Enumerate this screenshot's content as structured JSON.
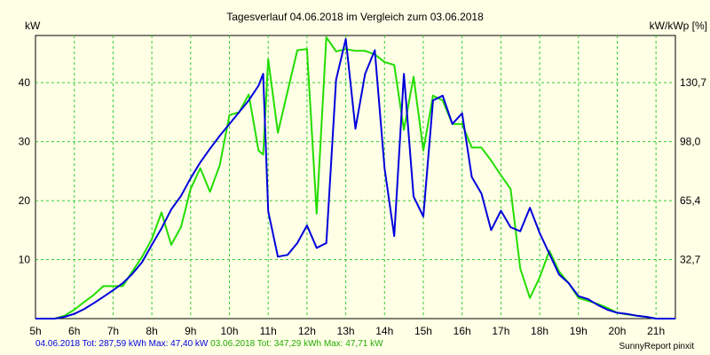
{
  "chart_data": {
    "type": "line",
    "title": "Tagesverlauf 04.06.2018 im Vergleich zum 03.06.2018",
    "ylabel_left": "kW",
    "ylabel_right": "kW/kWp [%]",
    "ylim": [
      0,
      48
    ],
    "y_ticks": [
      10,
      20,
      30,
      40
    ],
    "y_right_ticks": [
      "32,7",
      "65,4",
      "98,0",
      "130,7"
    ],
    "x_range": [
      5,
      21.5
    ],
    "x_ticks": [
      "5h",
      "6h",
      "7h",
      "8h",
      "9h",
      "10h",
      "11h",
      "12h",
      "13h",
      "14h",
      "15h",
      "16h",
      "17h",
      "18h",
      "19h",
      "20h",
      "21h"
    ],
    "x_tick_values": [
      5,
      6,
      7,
      8,
      9,
      10,
      11,
      12,
      13,
      14,
      15,
      16,
      17,
      18,
      19,
      20,
      21
    ],
    "series": [
      {
        "name": "04.06.2018",
        "color": "#0000dd",
        "x": [
          5,
          5.5,
          5.75,
          6,
          6.25,
          6.5,
          6.75,
          7,
          7.25,
          7.5,
          7.75,
          8,
          8.25,
          8.5,
          8.75,
          9,
          9.25,
          9.5,
          9.75,
          10,
          10.25,
          10.5,
          10.75,
          10.87,
          11,
          11.25,
          11.5,
          11.75,
          12,
          12.25,
          12.5,
          12.75,
          13,
          13.25,
          13.5,
          13.75,
          14,
          14.25,
          14.5,
          14.75,
          15,
          15.25,
          15.5,
          15.75,
          16,
          16.25,
          16.5,
          16.75,
          17,
          17.25,
          17.5,
          17.75,
          18,
          18.25,
          18.5,
          18.75,
          19,
          19.25,
          19.5,
          19.75,
          20,
          20.25,
          20.5,
          20.75,
          21,
          21.25,
          21.5
        ],
        "y": [
          0,
          0,
          0.3,
          0.8,
          1.6,
          2.6,
          3.7,
          4.8,
          6.0,
          7.6,
          9.6,
          12.5,
          15.3,
          18.5,
          20.8,
          23.8,
          26.5,
          28.8,
          31.0,
          33.0,
          35.0,
          37.0,
          39.5,
          41.5,
          18.2,
          10.5,
          10.8,
          12.8,
          15.8,
          12.0,
          12.8,
          40.5,
          47.4,
          32.2,
          41.5,
          45.5,
          25.5,
          14.0,
          41.5,
          20.7,
          17.3,
          37.0,
          37.8,
          33.0,
          34.8,
          24.0,
          21.2,
          15.0,
          18.3,
          15.5,
          14.8,
          18.8,
          14.5,
          11.0,
          7.5,
          6.0,
          3.8,
          3.3,
          2.3,
          1.5,
          1.0,
          0.8,
          0.5,
          0.3,
          0,
          0,
          0
        ]
      },
      {
        "name": "03.06.2018",
        "color": "#22dd00",
        "x": [
          5,
          5.5,
          5.75,
          6,
          6.25,
          6.5,
          6.75,
          7,
          7.25,
          7.5,
          7.75,
          8,
          8.25,
          8.5,
          8.75,
          9,
          9.25,
          9.5,
          9.75,
          10,
          10.25,
          10.5,
          10.75,
          10.87,
          11,
          11.25,
          11.5,
          11.75,
          12,
          12.25,
          12.5,
          12.75,
          13,
          13.25,
          13.5,
          13.75,
          14,
          14.25,
          14.5,
          14.75,
          15,
          15.25,
          15.5,
          15.75,
          16,
          16.25,
          16.5,
          16.75,
          17,
          17.25,
          17.5,
          17.75,
          18,
          18.25,
          18.5,
          18.75,
          19,
          19.25,
          19.5,
          19.75,
          20,
          20.25,
          20.5,
          20.75,
          21,
          21.25,
          21.5
        ],
        "y": [
          0,
          0,
          0.5,
          1.5,
          2.8,
          4.0,
          5.5,
          5.5,
          5.5,
          8.0,
          10.5,
          13.5,
          18.0,
          12.5,
          15.5,
          22.0,
          25.5,
          21.5,
          26.0,
          34.5,
          35.0,
          38.0,
          28.5,
          27.8,
          44.0,
          31.5,
          38.5,
          45.5,
          45.7,
          17.8,
          47.7,
          45.3,
          45.7,
          45.4,
          45.4,
          44.8,
          43.5,
          43.0,
          32.0,
          41.0,
          28.5,
          37.8,
          37.0,
          33.0,
          33.0,
          29.0,
          29.0,
          26.8,
          24.3,
          22.0,
          8.5,
          3.5,
          7.0,
          11.5,
          8.0,
          6.0,
          3.5,
          3.0,
          2.5,
          1.8,
          1.0,
          0.7,
          0.5,
          0.3,
          0,
          0,
          0
        ]
      }
    ]
  },
  "footer": {
    "s1_label": "04.06.2018 Tot: 287,59 kWh Max: 47,40 kW",
    "s2_label": "03.06.2018 Tot: 347,29 kWh Max: 47,71 kW",
    "credit": "SunnyReport pinxit"
  }
}
